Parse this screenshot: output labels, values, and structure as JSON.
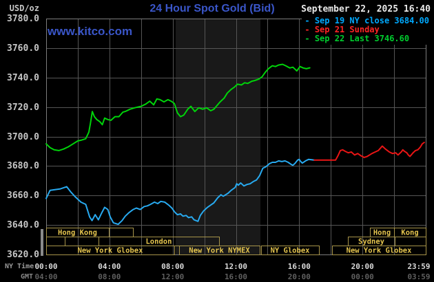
{
  "title": "24 Hour Spot Gold (Bid)",
  "watermark": "www.kitco.com",
  "units_label": "USD/oz",
  "timestamp": "September 22, 2025 16:40",
  "legend": {
    "dash": "-",
    "items": [
      {
        "label": "Sep 19 NY close 3684.00",
        "color": "#00a9ff"
      },
      {
        "label": "Sep 21 Sunday",
        "color": "#ff2424"
      },
      {
        "label": "Sep 22 Last 3746.60",
        "color": "#00cd2e"
      }
    ]
  },
  "axis": {
    "ny_label": "NY Time",
    "gmt_label": "GMT",
    "y_labels": [
      "3780.0",
      "3760.0",
      "3740.0",
      "3720.0",
      "3700.0",
      "3680.0",
      "3660.0",
      "3640.0",
      "3620.0"
    ],
    "y_values": [
      3780,
      3760,
      3740,
      3720,
      3700,
      3680,
      3660,
      3640,
      3620
    ],
    "ny_times": [
      "00:00",
      "04:00",
      "08:00",
      "12:00",
      "16:00",
      "20:00",
      "23:59"
    ],
    "gmt_times": [
      "04:00",
      "08:00",
      "12:00",
      "16:00",
      "20:00",
      "00:00",
      "03:59"
    ],
    "tick_hours": [
      0,
      4,
      8,
      12,
      16,
      20,
      23.98
    ]
  },
  "sessions": [
    {
      "row": 1,
      "start": 0,
      "end": 3.96,
      "label": "Hong Kong"
    },
    {
      "row": 1,
      "start": 3.96,
      "end": 5.49,
      "label": ""
    },
    {
      "row": 1,
      "start": 20.47,
      "end": 22.0,
      "label": "Hong"
    },
    {
      "row": 1,
      "start": 22.0,
      "end": 24.0,
      "label": "Kong"
    },
    {
      "row": 2,
      "start": 0,
      "end": 1.18,
      "label": ""
    },
    {
      "row": 2,
      "start": 1.18,
      "end": 3.31,
      "label": ""
    },
    {
      "row": 2,
      "start": 3.31,
      "end": 10.93,
      "label": "London"
    },
    {
      "row": 2,
      "start": 19.08,
      "end": 22.04,
      "label": "Sydney"
    },
    {
      "row": 2,
      "start": 22.04,
      "end": 24.0,
      "label": ""
    },
    {
      "row": 3,
      "start": 0,
      "end": 8.1,
      "label": "New York Globex"
    },
    {
      "row": 3,
      "start": 8.41,
      "end": 13.5,
      "label": "New York NYMEX"
    },
    {
      "row": 3,
      "start": 13.59,
      "end": 17.25,
      "label": "NY Globex"
    },
    {
      "row": 3,
      "start": 18.08,
      "end": 24.0,
      "label": "New York Globex"
    }
  ],
  "chart_data": {
    "type": "line",
    "title": "24 Hour Spot Gold (Bid)",
    "xlabel": "NY Time (hours, 00:00-23:59)",
    "ylabel": "USD/oz",
    "xlim": [
      0,
      24
    ],
    "ylim": [
      3620,
      3780
    ],
    "grid": {
      "x_step_hours": 2,
      "y_step": 20,
      "color": "#565656",
      "border_color": "#7e7e7e"
    },
    "shaded_band": {
      "start_hour": 8.19,
      "end_hour": 13.55,
      "color": "#191919"
    },
    "series": [
      {
        "name": "Sep 19 NY close 3684.00",
        "color": "#28aaf0",
        "points": [
          [
            0,
            3658
          ],
          [
            0.25,
            3663.5
          ],
          [
            0.55,
            3664
          ],
          [
            0.9,
            3664.5
          ],
          [
            1.3,
            3666
          ],
          [
            1.55,
            3662.5
          ],
          [
            1.85,
            3659
          ],
          [
            2.2,
            3655.5
          ],
          [
            2.5,
            3654
          ],
          [
            2.75,
            3645.5
          ],
          [
            2.9,
            3643
          ],
          [
            3.1,
            3647
          ],
          [
            3.3,
            3643.5
          ],
          [
            3.5,
            3648
          ],
          [
            3.7,
            3652
          ],
          [
            3.9,
            3650.5
          ],
          [
            4.05,
            3645.5
          ],
          [
            4.25,
            3641.5
          ],
          [
            4.55,
            3640.5
          ],
          [
            4.8,
            3643
          ],
          [
            5,
            3646
          ],
          [
            5.25,
            3648.5
          ],
          [
            5.5,
            3650.5
          ],
          [
            5.7,
            3651.5
          ],
          [
            5.95,
            3650.5
          ],
          [
            6.2,
            3652.5
          ],
          [
            6.4,
            3653
          ],
          [
            6.6,
            3654
          ],
          [
            6.85,
            3655.5
          ],
          [
            7.05,
            3654.5
          ],
          [
            7.25,
            3656
          ],
          [
            7.5,
            3655.5
          ],
          [
            7.75,
            3653.5
          ],
          [
            7.95,
            3651.5
          ],
          [
            8.15,
            3648.5
          ],
          [
            8.3,
            3647
          ],
          [
            8.5,
            3647.5
          ],
          [
            8.65,
            3646
          ],
          [
            8.85,
            3646.5
          ],
          [
            9,
            3645
          ],
          [
            9.2,
            3645.5
          ],
          [
            9.35,
            3643.5
          ],
          [
            9.6,
            3642.5
          ],
          [
            9.75,
            3646.5
          ],
          [
            9.95,
            3649.5
          ],
          [
            10.2,
            3652
          ],
          [
            10.4,
            3653.5
          ],
          [
            10.6,
            3655
          ],
          [
            10.85,
            3658.5
          ],
          [
            11.05,
            3660.5
          ],
          [
            11.2,
            3659.5
          ],
          [
            11.5,
            3661.5
          ],
          [
            11.7,
            3663.5
          ],
          [
            11.95,
            3665.5
          ],
          [
            12.05,
            3668
          ],
          [
            12.15,
            3667
          ],
          [
            12.3,
            3668.5
          ],
          [
            12.5,
            3666.5
          ],
          [
            12.7,
            3667.5
          ],
          [
            12.9,
            3668
          ],
          [
            13.1,
            3669.5
          ],
          [
            13.3,
            3670.5
          ],
          [
            13.5,
            3673.5
          ],
          [
            13.6,
            3676
          ],
          [
            13.7,
            3678.5
          ],
          [
            13.9,
            3679.5
          ],
          [
            14.1,
            3681.5
          ],
          [
            14.3,
            3682.5
          ],
          [
            14.5,
            3682.5
          ],
          [
            14.7,
            3683.5
          ],
          [
            14.9,
            3683
          ],
          [
            15.1,
            3683.5
          ],
          [
            15.3,
            3682.5
          ],
          [
            15.5,
            3681
          ],
          [
            15.6,
            3680.5
          ],
          [
            15.75,
            3682
          ],
          [
            15.9,
            3684
          ],
          [
            16,
            3684.5
          ],
          [
            16.1,
            3683
          ],
          [
            16.2,
            3682
          ],
          [
            16.4,
            3683.5
          ],
          [
            16.6,
            3684.5
          ],
          [
            16.95,
            3684
          ]
        ]
      },
      {
        "name": "Sep 21 Sunday",
        "color": "#ea1515",
        "points": [
          [
            16.95,
            3684
          ],
          [
            17.4,
            3684
          ],
          [
            17.9,
            3684
          ],
          [
            18.3,
            3684
          ],
          [
            18.45,
            3687
          ],
          [
            18.6,
            3690.5
          ],
          [
            18.75,
            3691
          ],
          [
            18.9,
            3690
          ],
          [
            19.1,
            3689
          ],
          [
            19.3,
            3689.5
          ],
          [
            19.5,
            3687.5
          ],
          [
            19.7,
            3688.5
          ],
          [
            19.9,
            3687
          ],
          [
            20.1,
            3685.8
          ],
          [
            20.3,
            3686.5
          ],
          [
            20.6,
            3688.5
          ],
          [
            20.8,
            3689.5
          ],
          [
            21,
            3690.5
          ],
          [
            21.25,
            3693.5
          ],
          [
            21.45,
            3691.5
          ],
          [
            21.7,
            3689.5
          ],
          [
            21.9,
            3688.5
          ],
          [
            22.1,
            3689
          ],
          [
            22.25,
            3687.5
          ],
          [
            22.45,
            3689.5
          ],
          [
            22.55,
            3691
          ],
          [
            22.65,
            3690
          ],
          [
            22.8,
            3689
          ],
          [
            22.9,
            3687.5
          ],
          [
            23,
            3686.5
          ],
          [
            23.1,
            3687.7
          ],
          [
            23.2,
            3689
          ],
          [
            23.35,
            3690.5
          ],
          [
            23.5,
            3691
          ],
          [
            23.65,
            3692.7
          ],
          [
            23.78,
            3695
          ],
          [
            23.91,
            3696
          ]
        ]
      },
      {
        "name": "Sep 22 Last 3746.60",
        "color": "#00d40a",
        "points": [
          [
            0,
            3695
          ],
          [
            0.25,
            3692.5
          ],
          [
            0.5,
            3691
          ],
          [
            0.8,
            3690.5
          ],
          [
            1.1,
            3691.5
          ],
          [
            1.4,
            3693
          ],
          [
            1.7,
            3695
          ],
          [
            2,
            3697
          ],
          [
            2.2,
            3697.5
          ],
          [
            2.5,
            3698.5
          ],
          [
            2.7,
            3703
          ],
          [
            2.8,
            3709
          ],
          [
            2.92,
            3717
          ],
          [
            3.05,
            3713.5
          ],
          [
            3.2,
            3711.5
          ],
          [
            3.4,
            3710
          ],
          [
            3.55,
            3708
          ],
          [
            3.7,
            3712.5
          ],
          [
            3.9,
            3711.5
          ],
          [
            4.1,
            3711
          ],
          [
            4.35,
            3713.5
          ],
          [
            4.6,
            3713.5
          ],
          [
            4.85,
            3716.5
          ],
          [
            5,
            3717
          ],
          [
            5.3,
            3718.5
          ],
          [
            5.6,
            3719.5
          ],
          [
            6,
            3720.5
          ],
          [
            6.3,
            3722
          ],
          [
            6.55,
            3724
          ],
          [
            6.8,
            3721.5
          ],
          [
            7,
            3725.5
          ],
          [
            7.2,
            3725
          ],
          [
            7.45,
            3723.5
          ],
          [
            7.7,
            3725
          ],
          [
            7.9,
            3724
          ],
          [
            8.1,
            3722.5
          ],
          [
            8.3,
            3716
          ],
          [
            8.5,
            3713.5
          ],
          [
            8.7,
            3714.5
          ],
          [
            8.95,
            3718.5
          ],
          [
            9.15,
            3720.5
          ],
          [
            9.4,
            3717
          ],
          [
            9.65,
            3719.5
          ],
          [
            9.9,
            3718.5
          ],
          [
            10.15,
            3719.5
          ],
          [
            10.4,
            3717.5
          ],
          [
            10.6,
            3718.5
          ],
          [
            11,
            3723.5
          ],
          [
            11.25,
            3726
          ],
          [
            11.45,
            3729.5
          ],
          [
            11.7,
            3732
          ],
          [
            11.9,
            3733.5
          ],
          [
            12.1,
            3735.5
          ],
          [
            12.35,
            3735
          ],
          [
            12.55,
            3736.5
          ],
          [
            12.75,
            3736
          ],
          [
            13,
            3737.5
          ],
          [
            13.2,
            3738
          ],
          [
            13.45,
            3739
          ],
          [
            13.65,
            3740.5
          ],
          [
            13.85,
            3743.5
          ],
          [
            14.05,
            3746
          ],
          [
            14.3,
            3748
          ],
          [
            14.5,
            3747.5
          ],
          [
            14.7,
            3748.5
          ],
          [
            14.95,
            3749
          ],
          [
            15.15,
            3748
          ],
          [
            15.4,
            3746.5
          ],
          [
            15.6,
            3747
          ],
          [
            15.85,
            3744.5
          ],
          [
            16.05,
            3747.5
          ],
          [
            16.25,
            3746.5
          ],
          [
            16.45,
            3746
          ],
          [
            16.67,
            3746.6
          ]
        ]
      }
    ]
  },
  "style": {
    "session_border": "#a8954a",
    "session_text": "#e4c44e",
    "grid_color": "#565656",
    "border_color": "#7e7e7e"
  }
}
